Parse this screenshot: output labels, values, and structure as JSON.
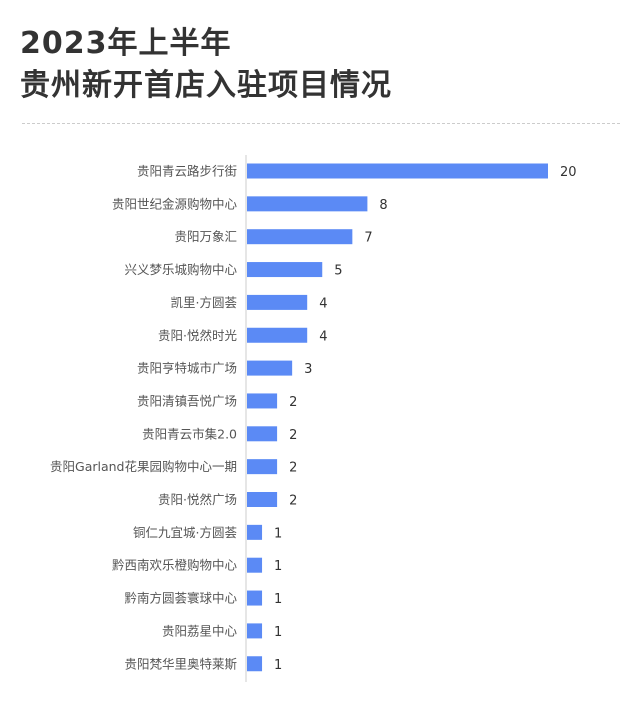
{
  "title_line1": "2023年上半年",
  "title_line2": "贵州新开首店入驻项目情况",
  "colors": {
    "bar": "#5b8af5",
    "axis": "#cccccc",
    "label": "#555555"
  },
  "chart_data": {
    "type": "bar",
    "orientation": "horizontal",
    "categories": [
      "贵阳青云路步行街",
      "贵阳世纪金源购物中心",
      "贵阳万象汇",
      "兴义梦乐城购物中心",
      "凯里·方圆荟",
      "贵阳·悦然时光",
      "贵阳亨特城市广场",
      "贵阳清镇吾悦广场",
      "贵阳青云市集2.0",
      "贵阳Garland花果园购物中心一期",
      "贵阳·悦然广场",
      "铜仁九宜城·方圆荟",
      "黔西南欢乐橙购物中心",
      "黔南方圆荟寰球中心",
      "贵阳荔星中心",
      "贵阳梵华里奥特莱斯"
    ],
    "values": [
      20,
      8,
      7,
      5,
      4,
      4,
      3,
      2,
      2,
      2,
      2,
      1,
      1,
      1,
      1,
      1
    ],
    "xlim": [
      0,
      20
    ],
    "grid": false,
    "legend": "none"
  }
}
